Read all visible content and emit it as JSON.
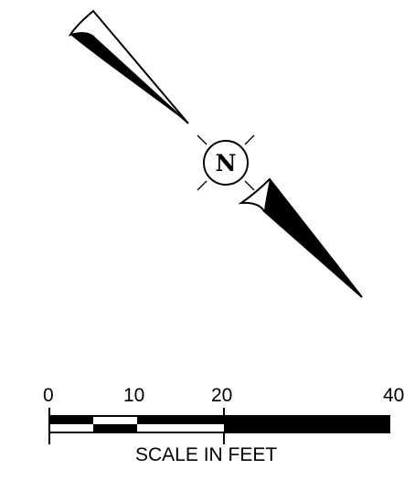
{
  "north_arrow": {
    "letter": "N",
    "icon": "north-arrow-icon"
  },
  "scale_bar": {
    "tick_labels": [
      "0",
      "10",
      "20",
      "40"
    ],
    "title": "SCALE IN FEET"
  },
  "colors": {
    "ink": "#000000",
    "paper": "#ffffff"
  }
}
